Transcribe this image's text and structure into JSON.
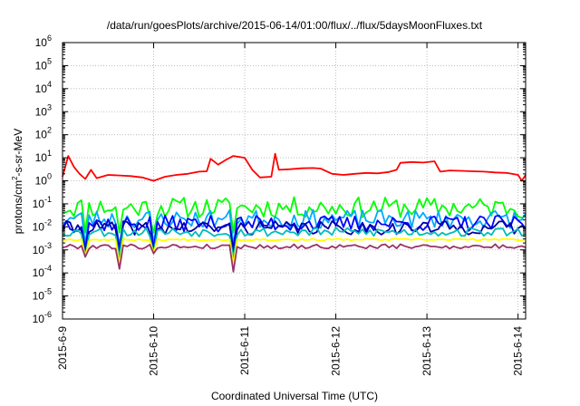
{
  "chart_data": {
    "type": "line",
    "title": "/data/run/goesPlots/archive/2015-06-14/01:00/flux/../flux/5daysMoonFluxes.txt",
    "xlabel": "Coordinated Universal Time (UTC)",
    "ylabel": "protons/cm2-s-sr-MeV",
    "y_scale": "log",
    "ylim": [
      1e-06,
      1000000.0
    ],
    "xlim": [
      "2015-06-09T00:00",
      "2015-06-14T02:00"
    ],
    "x_ticks": [
      "2015-6-9",
      "2015-6-10",
      "2015-6-11",
      "2015-6-12",
      "2015-6-13",
      "2015-6-14"
    ],
    "y_ticks": [
      {
        "base": "10",
        "exp": "-6"
      },
      {
        "base": "10",
        "exp": "-5"
      },
      {
        "base": "10",
        "exp": "-4"
      },
      {
        "base": "10",
        "exp": "-3"
      },
      {
        "base": "10",
        "exp": "-2"
      },
      {
        "base": "10",
        "exp": "-1"
      },
      {
        "base": "10",
        "exp": "0"
      },
      {
        "base": "10",
        "exp": "1"
      },
      {
        "base": "10",
        "exp": "2"
      },
      {
        "base": "10",
        "exp": "3"
      },
      {
        "base": "10",
        "exp": "4"
      },
      {
        "base": "10",
        "exp": "5"
      },
      {
        "base": "10",
        "exp": "6"
      }
    ],
    "grid": true,
    "series": [
      {
        "color": "#ff0000",
        "points": [
          [
            "2015-06-09T00:00",
            1.5
          ],
          [
            "2015-06-09T01:30",
            12
          ],
          [
            "2015-06-09T03:00",
            4
          ],
          [
            "2015-06-09T04:30",
            2
          ],
          [
            "2015-06-09T06:00",
            1.2
          ],
          [
            "2015-06-09T07:30",
            3
          ],
          [
            "2015-06-09T09:00",
            1.3
          ],
          [
            "2015-06-09T12:00",
            1.8
          ],
          [
            "2015-06-09T15:00",
            1.7
          ],
          [
            "2015-06-09T18:00",
            1.6
          ],
          [
            "2015-06-09T21:00",
            1.4
          ],
          [
            "2015-06-10T00:00",
            1.0
          ],
          [
            "2015-06-10T03:00",
            1.5
          ],
          [
            "2015-06-10T06:00",
            1.8
          ],
          [
            "2015-06-10T09:00",
            2.0
          ],
          [
            "2015-06-10T12:00",
            2.5
          ],
          [
            "2015-06-10T14:00",
            2.6
          ],
          [
            "2015-06-10T15:00",
            9
          ],
          [
            "2015-06-10T17:00",
            5
          ],
          [
            "2015-06-10T19:00",
            8
          ],
          [
            "2015-06-10T21:00",
            12
          ],
          [
            "2015-06-11T00:00",
            10
          ],
          [
            "2015-06-11T02:00",
            3
          ],
          [
            "2015-06-11T04:00",
            1.4
          ],
          [
            "2015-06-11T07:00",
            1.5
          ],
          [
            "2015-06-11T08:00",
            15
          ],
          [
            "2015-06-11T09:00",
            3
          ],
          [
            "2015-06-11T12:00",
            3.2
          ],
          [
            "2015-06-11T15:00",
            3.5
          ],
          [
            "2015-06-11T18:00",
            3.6
          ],
          [
            "2015-06-11T20:00",
            3.4
          ],
          [
            "2015-06-11T23:00",
            2
          ],
          [
            "2015-06-12T02:00",
            1.8
          ],
          [
            "2015-06-12T05:00",
            2
          ],
          [
            "2015-06-12T08:00",
            2.2
          ],
          [
            "2015-06-12T11:00",
            2.1
          ],
          [
            "2015-06-12T14:00",
            2.4
          ],
          [
            "2015-06-12T16:00",
            3
          ],
          [
            "2015-06-12T17:00",
            6
          ],
          [
            "2015-06-12T20:00",
            6.5
          ],
          [
            "2015-06-12T23:00",
            6.2
          ],
          [
            "2015-06-13T02:00",
            7
          ],
          [
            "2015-06-13T03:30",
            2.5
          ],
          [
            "2015-06-13T06:00",
            2.8
          ],
          [
            "2015-06-13T09:00",
            2.7
          ],
          [
            "2015-06-13T12:00",
            2.6
          ],
          [
            "2015-06-13T15:00",
            2.5
          ],
          [
            "2015-06-13T18:00",
            2.3
          ],
          [
            "2015-06-13T21:00",
            2.2
          ],
          [
            "2015-06-14T00:00",
            1.8
          ],
          [
            "2015-06-14T01:00",
            1.0
          ],
          [
            "2015-06-14T02:00",
            1.8
          ]
        ]
      },
      {
        "color": "#00ff00",
        "level": 0.07,
        "spread": 0.45,
        "seed": 11
      },
      {
        "color": "#00aaff",
        "level": 0.022,
        "spread": 0.4,
        "seed": 23
      },
      {
        "color": "#0000ff",
        "level": 0.014,
        "spread": 0.35,
        "seed": 37
      },
      {
        "color": "#0000aa",
        "level": 0.009,
        "spread": 0.3,
        "seed": 41
      },
      {
        "color": "#00bbbb",
        "level": 0.006,
        "spread": 0.2,
        "seed": 53
      },
      {
        "color": "#ffff00",
        "level": 0.0028,
        "spread": 0.04,
        "seed": 67
      },
      {
        "color": "#993366",
        "level": 0.0014,
        "spread": 0.1,
        "seed": 79
      }
    ],
    "dips": [
      {
        "x": "2015-06-09T06:00",
        "y": 0.0005
      },
      {
        "x": "2015-06-09T15:00",
        "y": 0.00015
      },
      {
        "x": "2015-06-10T00:00",
        "y": 0.0007
      },
      {
        "x": "2015-06-10T21:00",
        "y": 2.5e-05
      }
    ]
  }
}
